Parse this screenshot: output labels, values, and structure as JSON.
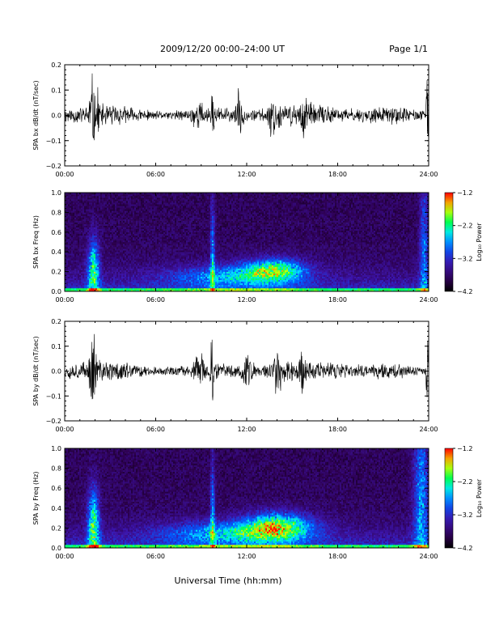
{
  "header": {
    "title": "2009/12/20  00:00–24:00 UT",
    "page": "Page 1/1"
  },
  "footer": {
    "xlabel": "Universal Time (hh:mm)"
  },
  "chart_data": [
    {
      "type": "line",
      "ylabel": "SPA bx dB/dt (nT/sec)",
      "x_ticks": [
        "00:00",
        "06:00",
        "12:00",
        "18:00",
        "24:00"
      ],
      "y_ticks": [
        "−0.2",
        "−0.1",
        "0.0",
        "0.1",
        "0.2"
      ],
      "ylim": [
        -0.2,
        0.2
      ],
      "xlim_hours": [
        0,
        24
      ],
      "baseline_amplitude": 0.04,
      "bursts": [
        {
          "t": 1.8,
          "w": 0.25,
          "amp": 0.19
        },
        {
          "t": 2.2,
          "w": 0.15,
          "amp": 0.14
        },
        {
          "t": 8.8,
          "w": 0.5,
          "amp": 0.08
        },
        {
          "t": 9.75,
          "w": 0.1,
          "amp": 0.2
        },
        {
          "t": 11.5,
          "w": 0.3,
          "amp": 0.12
        },
        {
          "t": 13.8,
          "w": 0.4,
          "amp": 0.12
        },
        {
          "t": 15.8,
          "w": 0.3,
          "amp": 0.13
        },
        {
          "t": 23.9,
          "w": 0.08,
          "amp": 0.2
        }
      ],
      "seed": 11
    },
    {
      "type": "heatmap",
      "ylabel": "SPA bx Freq (Hz)",
      "x_ticks": [
        "00:00",
        "06:00",
        "12:00",
        "18:00",
        "24:00"
      ],
      "y_ticks": [
        "0.0",
        "0.2",
        "0.4",
        "0.6",
        "0.8",
        "1.0"
      ],
      "ylim": [
        0,
        1.0
      ],
      "xlim_hours": [
        0,
        24
      ],
      "colorbar": {
        "label": "Log₁₀ Power",
        "ticks": [
          "−1.2",
          "−2.2",
          "−3.2",
          "−4.2"
        ],
        "range": [
          -4.2,
          -1.2
        ]
      },
      "hotspots": [
        {
          "t": 1.9,
          "f": 0.2,
          "w": 0.4,
          "h": 0.35,
          "level": 0.55
        },
        {
          "t": 9.75,
          "f": 0.3,
          "w": 0.15,
          "h": 0.6,
          "level": 0.4
        },
        {
          "t": 13.8,
          "f": 0.22,
          "w": 2.0,
          "h": 0.12,
          "level": 0.55
        },
        {
          "t": 11.0,
          "f": 0.15,
          "w": 4.0,
          "h": 0.12,
          "level": 0.35
        },
        {
          "t": 23.7,
          "f": 0.4,
          "w": 0.3,
          "h": 0.8,
          "level": 0.35
        }
      ],
      "seed": 23
    },
    {
      "type": "line",
      "ylabel": "SPA by dB/dt (nT/sec)",
      "x_ticks": [
        "00:00",
        "06:00",
        "12:00",
        "18:00",
        "24:00"
      ],
      "y_ticks": [
        "−0.2",
        "−0.1",
        "0.0",
        "0.1",
        "0.2"
      ],
      "ylim": [
        -0.2,
        0.2
      ],
      "xlim_hours": [
        0,
        24
      ],
      "baseline_amplitude": 0.04,
      "bursts": [
        {
          "t": 1.9,
          "w": 0.3,
          "amp": 0.2
        },
        {
          "t": 8.9,
          "w": 0.5,
          "amp": 0.09
        },
        {
          "t": 9.7,
          "w": 0.12,
          "amp": 0.2
        },
        {
          "t": 12.0,
          "w": 0.5,
          "amp": 0.1
        },
        {
          "t": 14.0,
          "w": 0.4,
          "amp": 0.13
        },
        {
          "t": 15.6,
          "w": 0.3,
          "amp": 0.14
        },
        {
          "t": 23.9,
          "w": 0.08,
          "amp": 0.2
        }
      ],
      "seed": 37
    },
    {
      "type": "heatmap",
      "ylabel": "SPA by Freq (Hz)",
      "x_ticks": [
        "00:00",
        "06:00",
        "12:00",
        "18:00",
        "24:00"
      ],
      "y_ticks": [
        "0.0",
        "0.2",
        "0.4",
        "0.6",
        "0.8",
        "1.0"
      ],
      "ylim": [
        0,
        1.0
      ],
      "xlim_hours": [
        0,
        24
      ],
      "colorbar": {
        "label": "Log₁₀ Power",
        "ticks": [
          "−1.2",
          "−2.2",
          "−3.2",
          "−4.2"
        ],
        "range": [
          -4.2,
          -1.2
        ]
      },
      "hotspots": [
        {
          "t": 1.9,
          "f": 0.2,
          "w": 0.4,
          "h": 0.4,
          "level": 0.6
        },
        {
          "t": 9.75,
          "f": 0.3,
          "w": 0.15,
          "h": 0.6,
          "level": 0.4
        },
        {
          "t": 14.0,
          "f": 0.22,
          "w": 2.2,
          "h": 0.14,
          "level": 0.6
        },
        {
          "t": 11.0,
          "f": 0.15,
          "w": 4.5,
          "h": 0.12,
          "level": 0.4
        },
        {
          "t": 23.5,
          "f": 0.5,
          "w": 0.5,
          "h": 1.0,
          "level": 0.4
        }
      ],
      "seed": 51
    }
  ]
}
